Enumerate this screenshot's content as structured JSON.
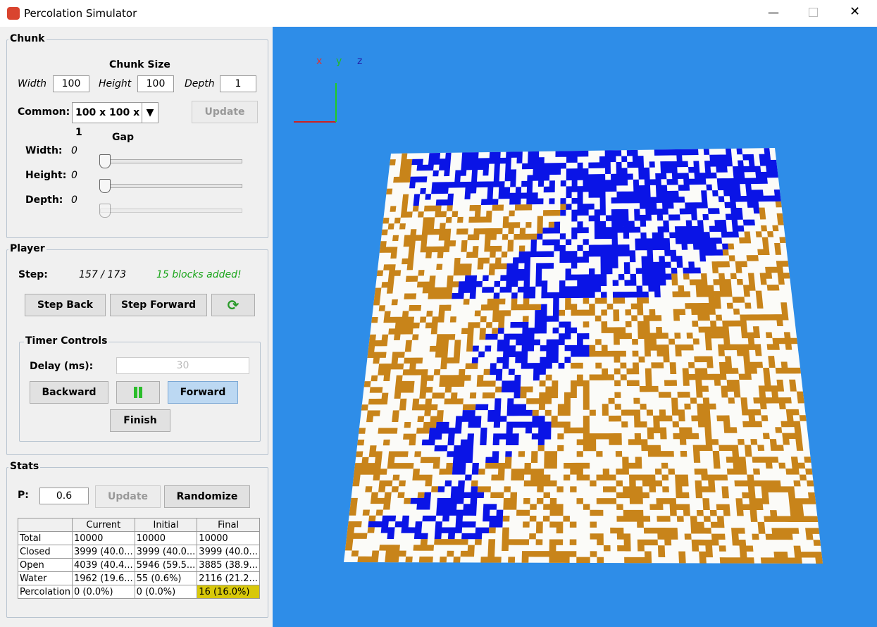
{
  "window": {
    "title": "Percolation Simulator"
  },
  "chunk": {
    "title": "Chunk",
    "size_label": "Chunk Size",
    "width_label": "Width",
    "width_value": "100",
    "height_label": "Height",
    "height_value": "100",
    "depth_label": "Depth",
    "depth_value": "1",
    "common_label": "Common:",
    "common_value": "100 x 100 x 1",
    "update": "Update",
    "gap_label": "Gap",
    "gap": [
      {
        "label": "Width:",
        "value": "0"
      },
      {
        "label": "Height:",
        "value": "0"
      },
      {
        "label": "Depth:",
        "value": "0"
      }
    ]
  },
  "player": {
    "title": "Player",
    "step_label": "Step:",
    "step_value": "157 / 173",
    "step_message": "15 blocks added!",
    "step_back": "Step Back",
    "step_forward": "Step Forward",
    "timer": {
      "title": "Timer Controls",
      "delay_label": "Delay (ms):",
      "delay_value": "30",
      "backward": "Backward",
      "forward": "Forward",
      "finish": "Finish"
    }
  },
  "stats": {
    "title": "Stats",
    "p_label": "P:",
    "p_value": "0.6",
    "update": "Update",
    "randomize": "Randomize",
    "table": {
      "header": [
        "Current",
        "Initial",
        "Final"
      ],
      "rows": [
        [
          "Total",
          "10000",
          "10000",
          "10000"
        ],
        [
          "Closed",
          "3999 (40.0...",
          "3999 (40.0...",
          "3999 (40.0..."
        ],
        [
          "Open",
          "4039 (40.4...",
          "5946 (59.5...",
          "3885 (38.9..."
        ],
        [
          "Water",
          "1962 (19.6...",
          "55 (0.6%)",
          "2116 (21.2..."
        ],
        [
          "Percolation",
          "0 (0.0%)",
          "0 (0.0%)",
          "16 (16.0%)"
        ]
      ]
    }
  },
  "viewport": {
    "axes": [
      "x",
      "y",
      "z"
    ]
  }
}
